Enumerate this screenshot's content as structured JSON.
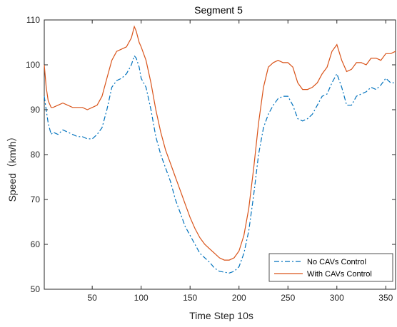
{
  "chart_data": {
    "type": "line",
    "title": "Segment 5",
    "xlabel": "Time Step 10s",
    "ylabel": "Speed（km/h）",
    "xlim": [
      1,
      360
    ],
    "ylim": [
      50,
      110
    ],
    "xticks": [
      50,
      100,
      150,
      200,
      250,
      300,
      350
    ],
    "yticks": [
      50,
      60,
      70,
      80,
      90,
      100,
      110
    ],
    "legend_position": "bottom-right",
    "grid": false,
    "series": [
      {
        "name": "No CAVs Control",
        "color": "#0072BD",
        "style": "dash-dot",
        "x": [
          1,
          3,
          5,
          8,
          10,
          15,
          20,
          25,
          30,
          35,
          40,
          45,
          50,
          55,
          60,
          65,
          70,
          75,
          80,
          85,
          90,
          93,
          95,
          98,
          100,
          105,
          110,
          115,
          120,
          125,
          130,
          135,
          140,
          145,
          150,
          155,
          160,
          165,
          170,
          175,
          180,
          185,
          190,
          195,
          200,
          205,
          210,
          215,
          220,
          225,
          230,
          235,
          240,
          245,
          250,
          255,
          260,
          265,
          270,
          275,
          280,
          285,
          290,
          295,
          300,
          305,
          310,
          315,
          320,
          325,
          330,
          335,
          340,
          345,
          350,
          355,
          360
        ],
        "y": [
          93,
          90,
          87,
          84.5,
          85,
          84.5,
          85.5,
          85,
          84.5,
          84,
          84,
          83.5,
          83.5,
          84.5,
          86,
          90,
          95,
          96.5,
          97,
          98,
          100,
          102,
          101.5,
          99.5,
          97,
          95,
          90,
          84,
          80,
          77,
          74,
          70,
          67,
          64,
          62,
          60,
          58,
          57,
          56,
          54.7,
          54,
          53.8,
          53.6,
          54,
          55,
          58,
          63,
          71,
          80,
          86,
          89,
          91,
          92.5,
          93,
          93,
          91,
          88,
          87.5,
          88,
          89,
          91,
          93,
          93.5,
          96,
          98,
          95,
          91,
          91,
          93,
          93.5,
          94,
          95,
          94.5,
          95.5,
          97,
          96,
          96
        ]
      },
      {
        "name": "With CAVs Control",
        "color": "#D95319",
        "style": "solid",
        "x": [
          1,
          3,
          5,
          8,
          10,
          15,
          20,
          25,
          30,
          35,
          40,
          45,
          50,
          55,
          60,
          65,
          70,
          75,
          80,
          85,
          90,
          93,
          95,
          98,
          100,
          105,
          110,
          115,
          120,
          125,
          130,
          135,
          140,
          145,
          150,
          155,
          160,
          165,
          170,
          175,
          180,
          185,
          190,
          195,
          200,
          205,
          210,
          215,
          220,
          225,
          230,
          235,
          240,
          245,
          250,
          255,
          260,
          265,
          270,
          275,
          280,
          285,
          290,
          295,
          300,
          305,
          310,
          315,
          320,
          325,
          330,
          335,
          340,
          345,
          350,
          355,
          360
        ],
        "y": [
          100,
          95,
          92,
          90.5,
          90.5,
          91,
          91.5,
          91,
          90.5,
          90.5,
          90.5,
          90,
          90.5,
          91,
          93,
          97,
          101,
          103,
          103.5,
          104,
          106,
          108.5,
          107.5,
          105,
          104,
          101,
          96,
          90,
          85,
          81,
          78,
          75,
          72,
          69,
          66,
          63.5,
          61.5,
          60,
          59,
          58,
          57,
          56.5,
          56.5,
          57,
          58.5,
          62,
          68,
          77,
          87,
          95,
          99.5,
          100.5,
          101,
          100.5,
          100.5,
          99.5,
          96,
          94.5,
          94.5,
          95,
          96,
          98,
          99.5,
          103,
          104.5,
          101,
          98.5,
          99,
          100.5,
          100.5,
          100,
          101.5,
          101.5,
          101,
          102.5,
          102.5,
          103
        ]
      }
    ]
  }
}
